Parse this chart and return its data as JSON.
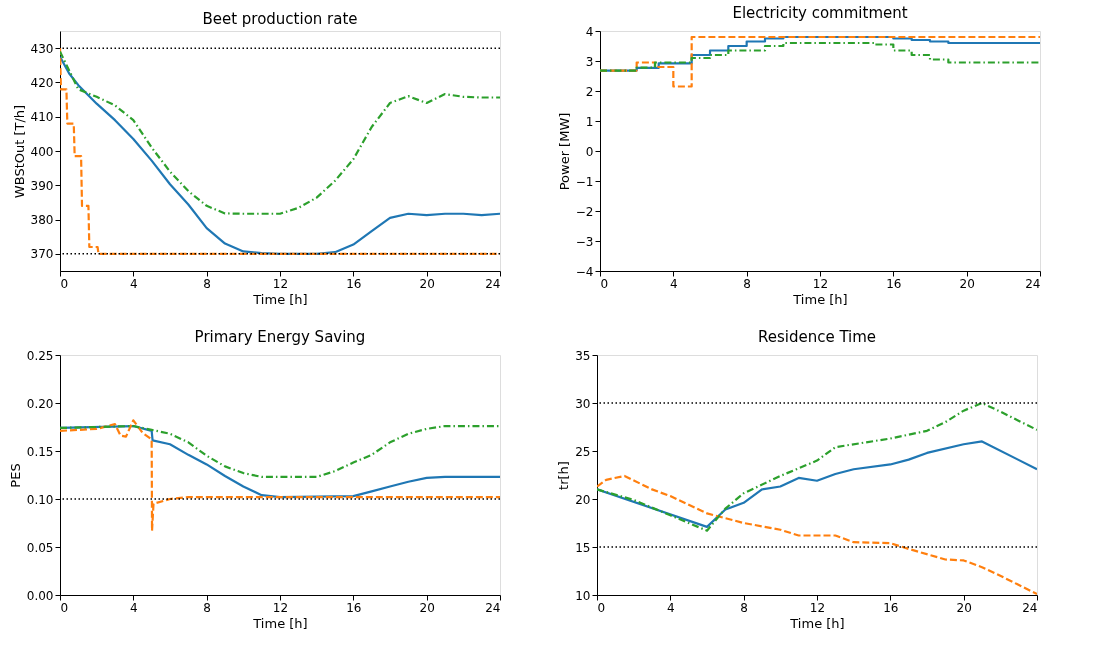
{
  "chart_data": [
    {
      "type": "line",
      "title": "Beet production rate",
      "xlabel": "Time [h]",
      "ylabel": "WBStOut [T/h]",
      "xlim": [
        0,
        24
      ],
      "xticks": [
        0,
        4,
        8,
        12,
        16,
        20,
        24
      ],
      "ylim": [
        365,
        435
      ],
      "yticks": [
        370,
        380,
        390,
        400,
        410,
        420,
        430
      ],
      "series": [
        {
          "color": "#1f77b4",
          "line_style": "solid",
          "x": [
            0,
            0.5,
            1,
            2,
            3,
            4,
            5,
            6,
            7,
            8,
            9,
            10,
            11,
            12,
            13,
            14,
            15,
            16,
            17,
            18,
            19,
            20,
            21,
            22,
            23,
            24
          ],
          "values": [
            427.5,
            422.6,
            419.2,
            413.8,
            409,
            403.5,
            397.2,
            390.3,
            384.4,
            377.5,
            373,
            370.7,
            370.2,
            370,
            370,
            370,
            370.5,
            372.7,
            376.6,
            380.5,
            381.7,
            381.3,
            381.7,
            381.7,
            381.3,
            381.7
          ]
        },
        {
          "color": "#ff7f0e",
          "line_style": "dashed",
          "x": [
            0,
            0.05,
            0.35,
            0.4,
            0.75,
            0.8,
            1.15,
            1.2,
            1.55,
            1.6,
            2.05,
            2.1,
            24
          ],
          "values": [
            430,
            418,
            418,
            408,
            408,
            398.5,
            398.5,
            384,
            384,
            372,
            372,
            370,
            370
          ]
        },
        {
          "color": "#2ca02c",
          "line_style": "dashdot",
          "x": [
            0,
            1,
            2,
            3,
            4,
            5,
            6,
            7,
            8,
            9,
            10,
            11,
            12,
            13,
            14,
            15,
            16,
            17,
            18,
            19,
            20,
            21,
            22,
            23,
            24
          ],
          "values": [
            429,
            418,
            415.8,
            413.3,
            409,
            401,
            394,
            388.3,
            384,
            381.8,
            381.7,
            381.7,
            381.7,
            383.4,
            386.4,
            391.3,
            397.6,
            407,
            414,
            416,
            414,
            416.6,
            415.8,
            415.6,
            415.6
          ]
        }
      ],
      "ref_lines": [
        {
          "axis": "y",
          "value": 430,
          "color": "#000000",
          "line_style": "dotted"
        },
        {
          "axis": "y",
          "value": 370,
          "color": "#000000",
          "line_style": "dotted"
        }
      ]
    },
    {
      "type": "step",
      "title": "Electricity commitment",
      "xlabel": "Time [h]",
      "ylabel": "Power [MW]",
      "xlim": [
        0,
        24
      ],
      "xticks": [
        0,
        4,
        8,
        12,
        16,
        20,
        24
      ],
      "ylim": [
        -4,
        4
      ],
      "yticks": [
        -4,
        -3,
        -2,
        -1,
        0,
        1,
        2,
        3,
        4
      ],
      "series": [
        {
          "color": "#1f77b4",
          "line_style": "solid",
          "x": [
            0,
            2,
            3.2,
            5,
            6,
            7,
            8,
            9,
            10,
            16,
            17,
            18,
            19,
            24
          ],
          "values": [
            2.68,
            2.77,
            2.92,
            3.2,
            3.35,
            3.5,
            3.65,
            3.75,
            3.8,
            3.75,
            3.7,
            3.65,
            3.6,
            3.6
          ]
        },
        {
          "color": "#ff7f0e",
          "line_style": "dashed",
          "x": [
            0,
            2,
            3,
            4,
            5,
            24
          ],
          "values": [
            2.68,
            2.95,
            2.8,
            2.15,
            3.8,
            3.8
          ]
        },
        {
          "color": "#2ca02c",
          "line_style": "dashdot",
          "x": [
            0,
            2,
            3,
            5,
            6,
            7,
            9,
            10,
            15,
            16,
            17,
            18,
            19,
            24
          ],
          "values": [
            2.68,
            2.78,
            2.95,
            3.1,
            3.2,
            3.35,
            3.5,
            3.6,
            3.55,
            3.35,
            3.2,
            3.05,
            2.95,
            2.95
          ]
        }
      ]
    },
    {
      "type": "line",
      "title": "Primary Energy Saving",
      "xlabel": "Time [h]",
      "ylabel": "PES",
      "xlim": [
        0,
        24
      ],
      "xticks": [
        0,
        4,
        8,
        12,
        16,
        20,
        24
      ],
      "ylim": [
        0,
        0.25
      ],
      "yticks": [
        {
          "value": 0,
          "label": "0.00"
        },
        {
          "value": 0.05,
          "label": "0.05"
        },
        {
          "value": 0.1,
          "label": "0.10"
        },
        {
          "value": 0.15,
          "label": "0.15"
        },
        {
          "value": 0.2,
          "label": "0.20"
        },
        {
          "value": 0.25,
          "label": "0.25"
        }
      ],
      "series": [
        {
          "color": "#1f77b4",
          "line_style": "solid",
          "x": [
            0,
            4,
            5,
            5.05,
            6,
            7,
            8,
            9,
            10,
            11,
            12,
            16,
            17,
            18,
            19,
            20,
            21,
            24
          ],
          "values": [
            0.174,
            0.176,
            0.171,
            0.161,
            0.157,
            0.146,
            0.136,
            0.124,
            0.113,
            0.104,
            0.102,
            0.103,
            0.108,
            0.113,
            0.118,
            0.122,
            0.123,
            0.123
          ]
        },
        {
          "color": "#ff7f0e",
          "line_style": "dashed",
          "x": [
            0,
            2,
            3,
            3.3,
            3.6,
            4,
            4.5,
            5,
            5.02,
            5.1,
            6,
            7,
            24
          ],
          "values": [
            0.171,
            0.173,
            0.178,
            0.166,
            0.165,
            0.182,
            0.169,
            0.162,
            0.067,
            0.095,
            0.1,
            0.102,
            0.102
          ]
        },
        {
          "color": "#2ca02c",
          "line_style": "dashdot",
          "x": [
            0,
            4,
            5,
            6,
            7,
            8,
            9,
            10,
            11,
            14,
            15,
            16,
            17,
            18,
            19,
            20,
            21,
            24
          ],
          "values": [
            0.174,
            0.176,
            0.172,
            0.168,
            0.159,
            0.145,
            0.134,
            0.127,
            0.123,
            0.123,
            0.129,
            0.138,
            0.146,
            0.159,
            0.168,
            0.173,
            0.176,
            0.176
          ]
        }
      ],
      "ref_lines": [
        {
          "axis": "y",
          "value": 0.1,
          "color": "#000000",
          "line_style": "dotted"
        }
      ]
    },
    {
      "type": "line",
      "title": "Residence Time",
      "xlabel": "Time [h]",
      "ylabel": "tr[h]",
      "xlim": [
        0,
        24
      ],
      "xticks": [
        0,
        4,
        8,
        12,
        16,
        20,
        24
      ],
      "ylim": [
        10,
        35
      ],
      "yticks": [
        10,
        15,
        20,
        25,
        30,
        35
      ],
      "series": [
        {
          "color": "#1f77b4",
          "line_style": "solid",
          "x": [
            0,
            6,
            7,
            8,
            9,
            10,
            11,
            12,
            13,
            14,
            16,
            17,
            18,
            20,
            21,
            24
          ],
          "values": [
            21,
            17.1,
            18.9,
            19.6,
            21,
            21.3,
            22.2,
            21.9,
            22.6,
            23.1,
            23.6,
            24.1,
            24.8,
            25.7,
            26,
            23.1
          ]
        },
        {
          "color": "#ff7f0e",
          "line_style": "dashed",
          "x": [
            0,
            0.5,
            1.5,
            3,
            4,
            6,
            8,
            10,
            11,
            13,
            14,
            16,
            17,
            19,
            20,
            21,
            22,
            24
          ],
          "values": [
            21.3,
            22,
            22.4,
            21,
            20.3,
            18.5,
            17.5,
            16.8,
            16.2,
            16.2,
            15.5,
            15.4,
            14.8,
            13.7,
            13.6,
            12.9,
            12,
            10.1
          ]
        },
        {
          "color": "#2ca02c",
          "line_style": "dashdot",
          "x": [
            0,
            2,
            4,
            6,
            7,
            8,
            10,
            12,
            13,
            16,
            18,
            19,
            20,
            21,
            22,
            24
          ],
          "values": [
            21,
            19.9,
            18.3,
            16.7,
            19,
            20.6,
            22.4,
            24,
            25.4,
            26.3,
            27.1,
            28,
            29.2,
            30,
            29.1,
            27.2
          ]
        }
      ],
      "ref_lines": [
        {
          "axis": "y",
          "value": 30,
          "color": "#000000",
          "line_style": "dotted"
        },
        {
          "axis": "y",
          "value": 15,
          "color": "#000000",
          "line_style": "dotted"
        }
      ]
    }
  ]
}
